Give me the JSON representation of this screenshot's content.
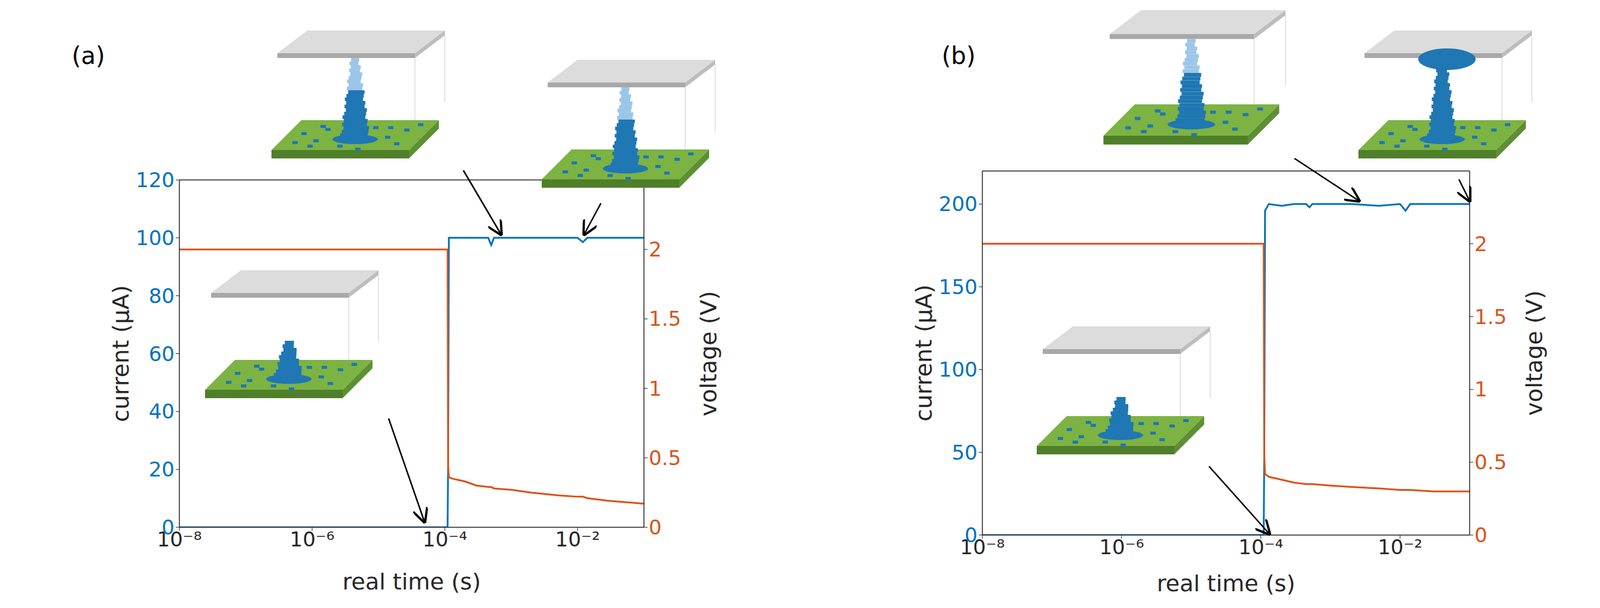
{
  "chart_data": [
    {
      "type": "line",
      "title": "(a)",
      "x_label": "real time (s)",
      "y_label": "current (μA)",
      "y2_label": "voltage (V)",
      "log": "x",
      "grid": false,
      "xlim": [
        1e-08,
        0.1
      ],
      "xticks": [
        {
          "value": 1e-08,
          "label": "10⁻⁸"
        },
        {
          "value": 1e-06,
          "label": "10⁻⁶"
        },
        {
          "value": 0.0001,
          "label": "10⁻⁴"
        },
        {
          "value": 0.01,
          "label": "10⁻²"
        }
      ],
      "ylim": [
        0,
        120
      ],
      "yticks": [
        0,
        20,
        40,
        60,
        80,
        100,
        120
      ],
      "y2lim": [
        0,
        2.5
      ],
      "y2ticks": [
        0,
        0.5,
        1,
        1.5,
        2
      ],
      "x": [
        1e-08,
        1e-06,
        0.0001,
        0.00011,
        0.000112,
        0.000115,
        0.00013,
        0.0002,
        0.0003,
        0.00045,
        0.0005,
        0.00055,
        0.001,
        0.002,
        0.005,
        0.01,
        0.012,
        0.014,
        0.03,
        0.1
      ],
      "series": [
        {
          "color": "#0072bd",
          "line_style": "solid",
          "values": [
            0,
            0,
            0,
            0,
            22,
            100,
            100,
            100,
            100,
            100,
            97.5,
            100,
            100,
            100,
            100,
            100,
            98.5,
            100,
            100,
            100
          ]
        },
        {
          "color": "#d95319",
          "line_style": "solid",
          "axis": "y2",
          "values": [
            2,
            2,
            2,
            2,
            0.45,
            0.36,
            0.35,
            0.33,
            0.3,
            0.29,
            0.29,
            0.28,
            0.27,
            0.25,
            0.23,
            0.22,
            0.22,
            0.21,
            0.19,
            0.17
          ]
        }
      ]
    },
    {
      "type": "line",
      "title": "(b)",
      "x_label": "real time (s)",
      "y_label": "current (μA)",
      "y2_label": "voltage (V)",
      "log": "x",
      "grid": false,
      "xlim": [
        1e-08,
        0.1
      ],
      "xticks": [
        {
          "value": 1e-08,
          "label": "10⁻⁸"
        },
        {
          "value": 1e-06,
          "label": "10⁻⁶"
        },
        {
          "value": 0.0001,
          "label": "10⁻⁴"
        },
        {
          "value": 0.01,
          "label": "10⁻²"
        }
      ],
      "ylim": [
        0,
        220
      ],
      "yticks": [
        0,
        50,
        100,
        150,
        200
      ],
      "y2lim": [
        0,
        2.5
      ],
      "y2ticks": [
        0,
        0.5,
        1,
        1.5,
        2
      ],
      "x": [
        1e-08,
        1e-06,
        0.0001,
        0.00011,
        0.000112,
        0.000115,
        0.00013,
        0.0002,
        0.0003,
        0.00045,
        0.0005,
        0.00055,
        0.001,
        0.002,
        0.005,
        0.01,
        0.012,
        0.014,
        0.03,
        0.1
      ],
      "series": [
        {
          "color": "#0072bd",
          "line_style": "solid",
          "values": [
            0,
            0,
            0,
            0,
            47,
            196,
            200,
            199,
            200,
            200,
            198,
            200,
            200,
            200,
            199,
            200,
            196,
            200,
            200,
            200
          ]
        },
        {
          "color": "#d95319",
          "line_style": "solid",
          "axis": "y2",
          "values": [
            2,
            2,
            2,
            2,
            0.55,
            0.42,
            0.4,
            0.38,
            0.36,
            0.35,
            0.35,
            0.35,
            0.34,
            0.33,
            0.32,
            0.31,
            0.31,
            0.31,
            0.3,
            0.3
          ]
        }
      ]
    }
  ]
}
